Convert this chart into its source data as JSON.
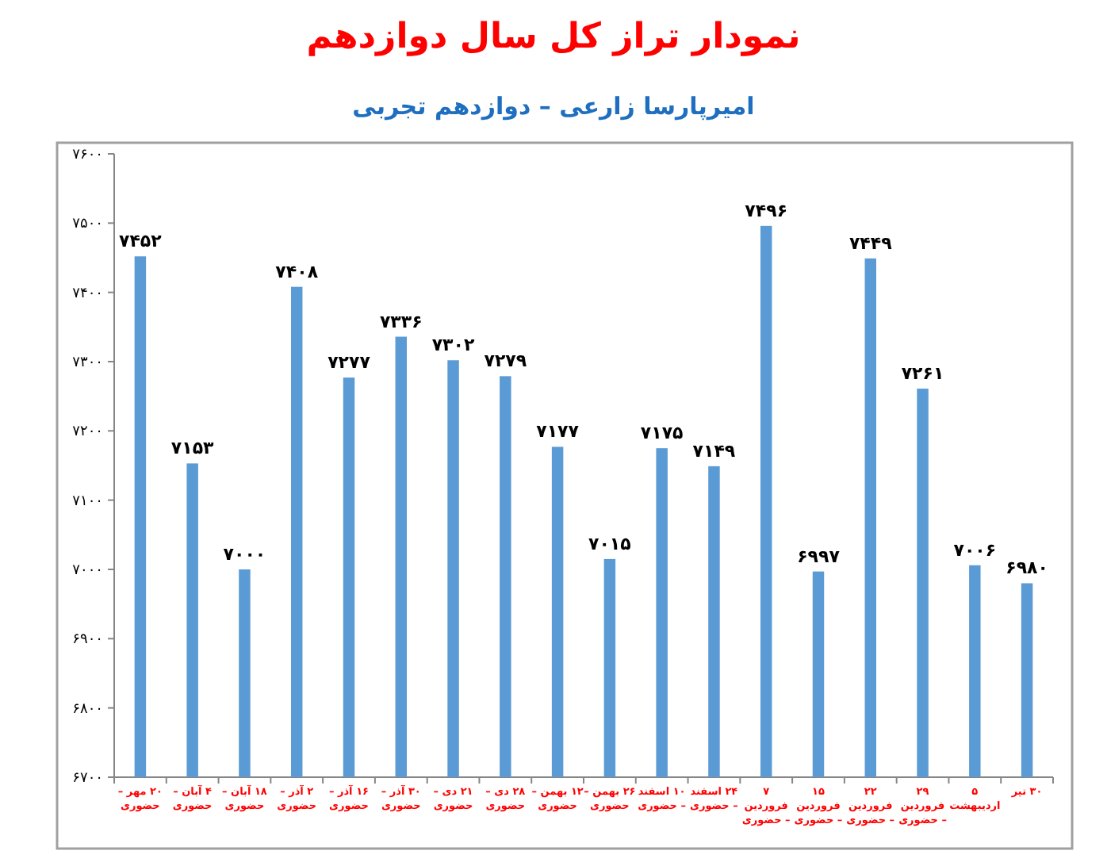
{
  "chart_data": {
    "type": "bar",
    "title": "نمودار تراز کل سال دوازدهم",
    "subtitle": "امیرپارسا زارعی – دوازدهم تجربی",
    "categories": [
      "۲۰ مهر – حضوری",
      "۴ آبان – حضوری",
      "۱۸ آبان – حضوری",
      "۲ آذر – حضوری",
      "۱۶ آذر – حضوری",
      "۳۰ آذر – حضوری",
      "۲۱ دی – حضوری",
      "۲۸ دی – حضوری",
      "۱۲ بهمن – حضوری",
      "۲۶ بهمن – حضوری",
      "۱۰ اسفند – حضوری",
      "۲۴ اسفند – حضوری",
      "۷ فروردین – حضوری",
      "۱۵ فروردین – حضوری",
      "۲۲ فروردین – حضوری",
      "۲۹ فروردین – حضوری",
      "۵ اردیبهشت",
      "۳۰ تیر"
    ],
    "values": [
      7452,
      7153,
      7000,
      7408,
      7277,
      7336,
      7302,
      7279,
      7177,
      7015,
      7175,
      7149,
      7496,
      6997,
      7449,
      7261,
      7006,
      6980
    ],
    "value_labels": [
      "۷۴۵۲",
      "۷۱۵۳",
      "۷۰۰۰",
      "۷۴۰۸",
      "۷۲۷۷",
      "۷۳۳۶",
      "۷۳۰۲",
      "۷۲۷۹",
      "۷۱۷۷",
      "۷۰۱۵",
      "۷۱۷۵",
      "۷۱۴۹",
      "۷۴۹۶",
      "۶۹۹۷",
      "۷۴۴۹",
      "۷۲۶۱",
      "۷۰۰۶",
      "۶۹۸۰"
    ],
    "color": "#5b9bd5",
    "ylim": [
      6700,
      7600
    ],
    "yticks": [
      {
        "value": 6700,
        "label": "۶۷۰۰"
      },
      {
        "value": 6800,
        "label": "۶۸۰۰"
      },
      {
        "value": 6900,
        "label": "۶۹۰۰"
      },
      {
        "value": 7000,
        "label": "۷۰۰۰"
      },
      {
        "value": 7100,
        "label": "۷۱۰۰"
      },
      {
        "value": 7200,
        "label": "۷۲۰۰"
      },
      {
        "value": 7300,
        "label": "۷۳۰۰"
      },
      {
        "value": 7400,
        "label": "۷۴۰۰"
      },
      {
        "value": 7500,
        "label": "۷۵۰۰"
      },
      {
        "value": 7600,
        "label": "۷۶۰۰"
      }
    ]
  }
}
